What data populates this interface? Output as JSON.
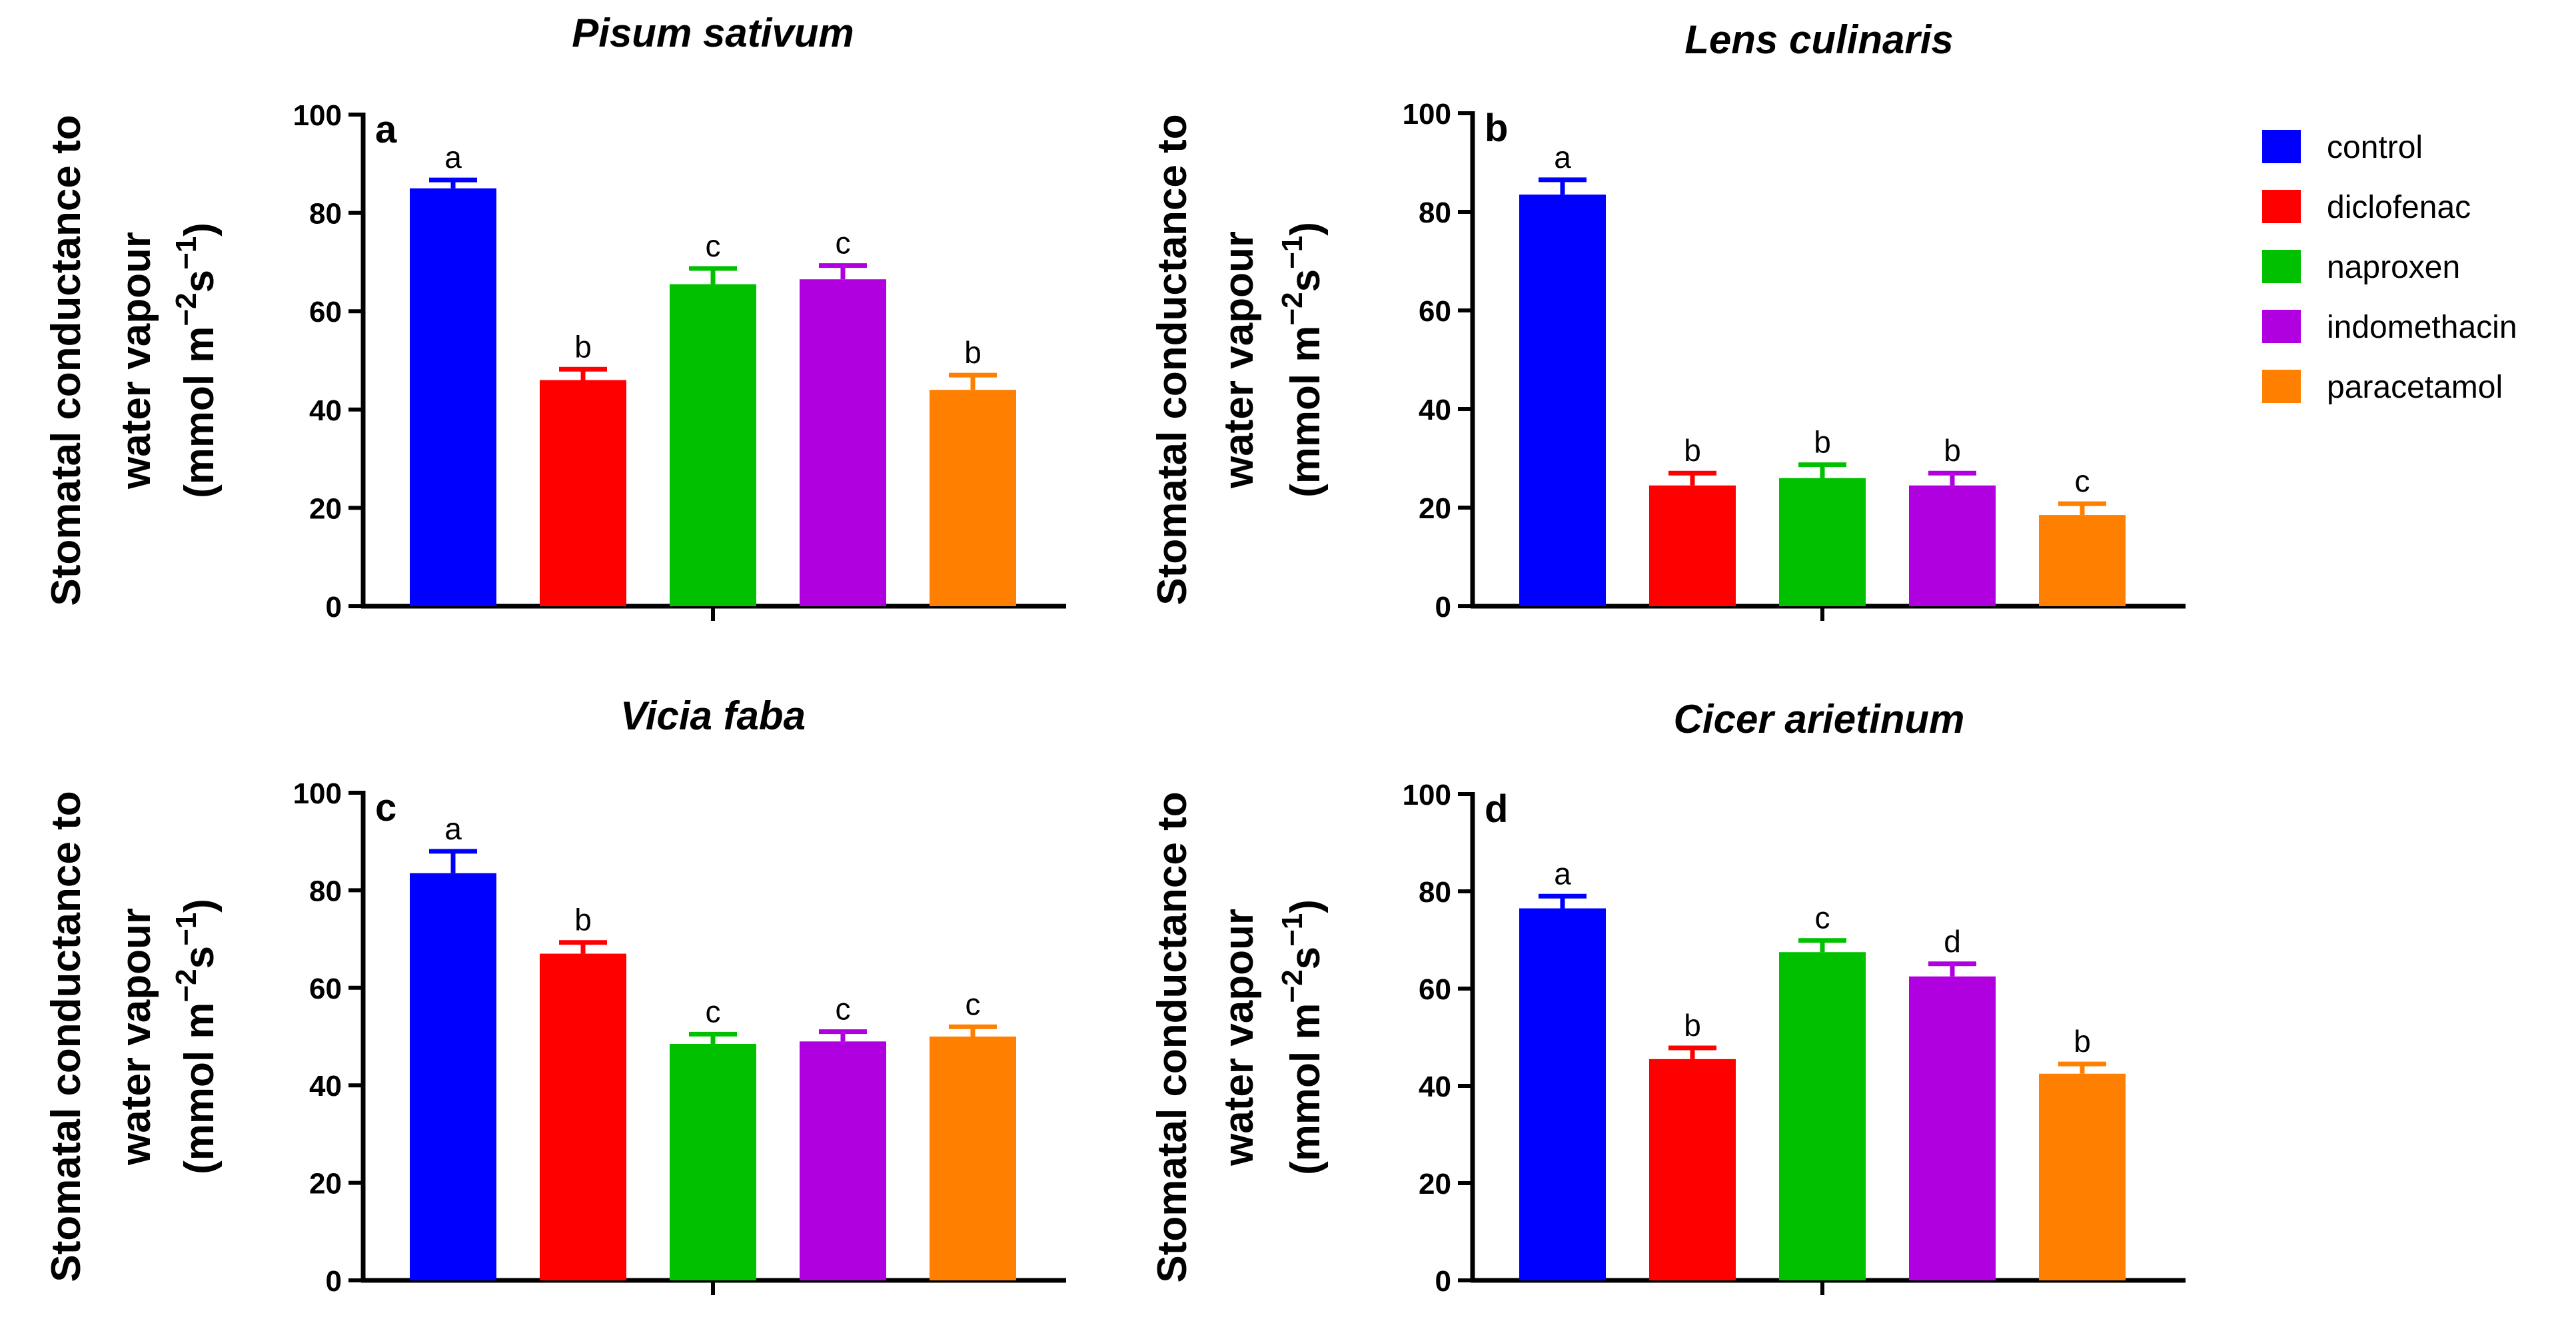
{
  "legend": {
    "items": [
      {
        "label": "control",
        "color": "#0000FF"
      },
      {
        "label": "diclofenac",
        "color": "#FF0000"
      },
      {
        "label": "naproxen",
        "color": "#00C000"
      },
      {
        "label": "indomethacin",
        "color": "#B000E0"
      },
      {
        "label": "paracetamol",
        "color": "#FF8000"
      }
    ]
  },
  "y_axis": {
    "line1": "Stomatal conductance to",
    "line2": "water vapour",
    "line3_prefix": "(mmol m",
    "exp1": "−2",
    "s_char": "s",
    "exp2": "−1",
    "line3_suffix": ")"
  },
  "chart_data": [
    {
      "type": "bar",
      "panel_label": "a",
      "title": "Pisum sativum",
      "ylabel": "Stomatal conductance to water vapour (mmol m−2s−1)",
      "ylim": [
        0,
        100
      ],
      "yticks": [
        "0",
        "20",
        "40",
        "60",
        "80",
        "100"
      ],
      "categories": [
        "control",
        "diclofenac",
        "naproxen",
        "indomethacin",
        "paracetamol"
      ],
      "values": [
        85,
        46,
        65.5,
        66.5,
        44
      ],
      "errors": [
        1.7,
        2.2,
        3.2,
        2.8,
        3.0
      ],
      "significance": [
        "a",
        "b",
        "c",
        "c",
        "b"
      ]
    },
    {
      "type": "bar",
      "panel_label": "b",
      "title": "Lens culinaris",
      "ylabel": "Stomatal conductance to water vapour (mmol m−2s−1)",
      "ylim": [
        0,
        100
      ],
      "yticks": [
        "0",
        "20",
        "40",
        "60",
        "80",
        "100"
      ],
      "categories": [
        "control",
        "diclofenac",
        "naproxen",
        "indomethacin",
        "paracetamol"
      ],
      "values": [
        83.5,
        24.5,
        26,
        24.5,
        18.5
      ],
      "errors": [
        3.0,
        2.5,
        2.7,
        2.5,
        2.3
      ],
      "significance": [
        "a",
        "b",
        "b",
        "b",
        "c"
      ]
    },
    {
      "type": "bar",
      "panel_label": "c",
      "title": "Vicia faba",
      "ylabel": "Stomatal conductance to water vapour (mmol m−2s−1)",
      "ylim": [
        0,
        100
      ],
      "yticks": [
        "0",
        "20",
        "40",
        "60",
        "80",
        "100"
      ],
      "categories": [
        "control",
        "diclofenac",
        "naproxen",
        "indomethacin",
        "paracetamol"
      ],
      "values": [
        83.5,
        67,
        48.5,
        49,
        50
      ],
      "errors": [
        4.5,
        2.3,
        2.0,
        2.0,
        2.0
      ],
      "significance": [
        "a",
        "b",
        "c",
        "c",
        "c"
      ]
    },
    {
      "type": "bar",
      "panel_label": "d",
      "title": "Cicer arietinum",
      "ylabel": "Stomatal conductance to water vapour (mmol m−2s−1)",
      "ylim": [
        0,
        100
      ],
      "yticks": [
        "0",
        "20",
        "40",
        "60",
        "80",
        "100"
      ],
      "categories": [
        "control",
        "diclofenac",
        "naproxen",
        "indomethacin",
        "paracetamol"
      ],
      "values": [
        76.5,
        45.5,
        67.5,
        62.5,
        42.5
      ],
      "errors": [
        2.5,
        2.3,
        2.4,
        2.6,
        2.0
      ],
      "significance": [
        "a",
        "b",
        "c",
        "d",
        "b"
      ]
    }
  ]
}
